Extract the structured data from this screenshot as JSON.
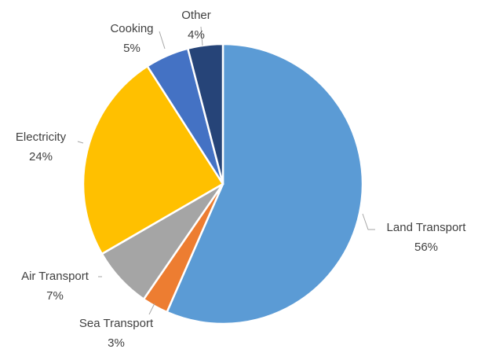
{
  "chart_data": {
    "type": "pie",
    "categories": [
      "Land Transport",
      "Sea Transport",
      "Air Transport",
      "Electricity",
      "Cooking",
      "Other"
    ],
    "values": [
      56,
      3,
      7,
      24,
      5,
      4
    ],
    "value_labels": [
      "56%",
      "3%",
      "7%",
      "24%",
      "5%",
      "4%"
    ],
    "colors": [
      "#5b9bd5",
      "#ed7d31",
      "#a5a5a5",
      "#ffc000",
      "#4472c4",
      "#264478"
    ]
  }
}
